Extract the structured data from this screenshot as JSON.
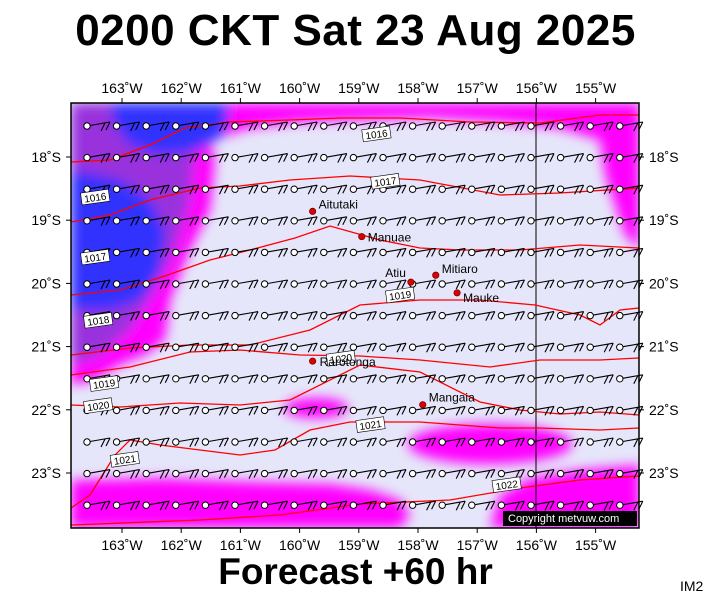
{
  "title": "0200 CKT Sat 23 Aug 2025",
  "forecast_label": "Forecast +60 hr",
  "corner_label": "IM2",
  "copyright": "Copyright metvuw.com",
  "colors": {
    "background": "#e6e6fa",
    "wind_magenta": "#ff00ff",
    "wind_purple": "#8a2be2",
    "wind_blue": "#2828ff",
    "isobar": "#ff0000",
    "place_dot": "#dd0000"
  },
  "map": {
    "lon_labels": [
      "163˚W",
      "162˚W",
      "161˚W",
      "160˚W",
      "159˚W",
      "158˚W",
      "157˚W",
      "156˚W",
      "155˚W"
    ],
    "lat_labels": [
      "18˚S",
      "19˚S",
      "20˚S",
      "21˚S",
      "22˚S",
      "23˚S"
    ],
    "places": [
      {
        "name": "Aitutaki",
        "lon": -159.78,
        "lat": -18.86
      },
      {
        "name": "Manuae",
        "lon": -158.95,
        "lat": -19.26
      },
      {
        "name": "Mitiaro",
        "lon": -157.7,
        "lat": -19.87
      },
      {
        "name": "Atiu",
        "lon": -158.12,
        "lat": -19.98
      },
      {
        "name": "Mauke",
        "lon": -157.34,
        "lat": -20.15
      },
      {
        "name": "Rarotonga",
        "lon": -159.78,
        "lat": -21.23
      },
      {
        "name": "Mangaia",
        "lon": -157.92,
        "lat": -21.92
      }
    ],
    "isobars": [
      {
        "label": "1016",
        "label_lon": -158.7,
        "label_lat": -17.65
      },
      {
        "label": "1016",
        "label_lon": -163.45,
        "label_lat": -18.65
      },
      {
        "label": "1017",
        "label_lon": -158.55,
        "label_lat": -18.4
      },
      {
        "label": "1017",
        "label_lon": -163.45,
        "label_lat": -19.6
      },
      {
        "label": "1018",
        "label_lon": -163.4,
        "label_lat": -20.6
      },
      {
        "label": "1019",
        "label_lon": -158.3,
        "label_lat": -20.2
      },
      {
        "label": "1019",
        "label_lon": -163.3,
        "label_lat": -21.6
      },
      {
        "label": "1020",
        "label_lon": -159.3,
        "label_lat": -21.2
      },
      {
        "label": "1020",
        "label_lon": -163.4,
        "label_lat": -21.95
      },
      {
        "label": "1021",
        "label_lon": -158.8,
        "label_lat": -22.25
      },
      {
        "label": "1021",
        "label_lon": -162.95,
        "label_lat": -22.8
      },
      {
        "label": "1022",
        "label_lon": -156.5,
        "label_lat": -23.2
      }
    ]
  }
}
